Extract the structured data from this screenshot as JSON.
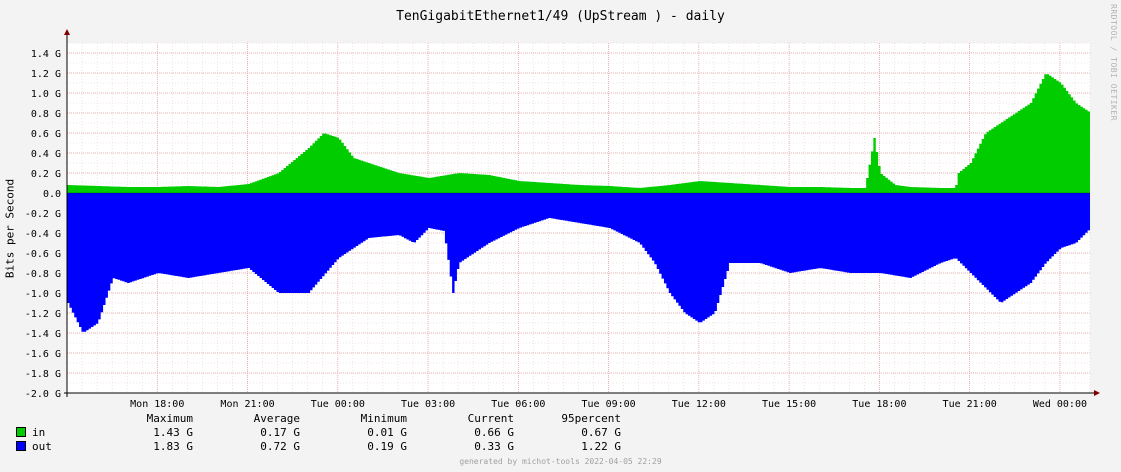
{
  "title": "TenGigabitEthernet1/49 (UpStream ) - daily",
  "side_credit": "RRDTOOL / TOBI OETIKER",
  "footer": "generated by michot-tools 2022-04-05 22:29",
  "chart_data": {
    "type": "area",
    "ylabel": "Bits per Second",
    "ylim": [
      -2.0,
      1.5
    ],
    "yticks": [
      "1.4 G",
      "1.2 G",
      "1.0 G",
      "0.8 G",
      "0.6 G",
      "0.4 G",
      "0.2 G",
      "0.0",
      "-0.2 G",
      "-0.4 G",
      "-0.6 G",
      "-0.8 G",
      "-1.0 G",
      "-1.2 G",
      "-1.4 G",
      "-1.6 G",
      "-1.8 G",
      "-2.0 G"
    ],
    "ytick_values": [
      1.4,
      1.2,
      1.0,
      0.8,
      0.6,
      0.4,
      0.2,
      0.0,
      -0.2,
      -0.4,
      -0.6,
      -0.8,
      -1.0,
      -1.2,
      -1.4,
      -1.6,
      -1.8,
      -2.0
    ],
    "xticks": [
      "Mon 18:00",
      "Mon 21:00",
      "Tue 00:00",
      "Tue 03:00",
      "Tue 06:00",
      "Tue 09:00",
      "Tue 12:00",
      "Tue 15:00",
      "Tue 18:00",
      "Tue 21:00",
      "Wed 00:00"
    ],
    "xtick_hours": [
      3,
      6,
      9,
      12,
      15,
      18,
      21,
      24,
      27,
      30,
      33
    ],
    "x_hours_range": [
      0.0,
      34.0
    ],
    "series": [
      {
        "name": "in",
        "color": "#00cc00",
        "points": [
          [
            0,
            0.08
          ],
          [
            1,
            0.07
          ],
          [
            2,
            0.06
          ],
          [
            3,
            0.06
          ],
          [
            4,
            0.07
          ],
          [
            5,
            0.06
          ],
          [
            6,
            0.09
          ],
          [
            7,
            0.2
          ],
          [
            8,
            0.45
          ],
          [
            8.5,
            0.6
          ],
          [
            9,
            0.55
          ],
          [
            9.5,
            0.35
          ],
          [
            10,
            0.3
          ],
          [
            11,
            0.2
          ],
          [
            12,
            0.15
          ],
          [
            13,
            0.2
          ],
          [
            14,
            0.18
          ],
          [
            15,
            0.12
          ],
          [
            16,
            0.1
          ],
          [
            17,
            0.08
          ],
          [
            18,
            0.07
          ],
          [
            19,
            0.05
          ],
          [
            20,
            0.08
          ],
          [
            21,
            0.12
          ],
          [
            22,
            0.1
          ],
          [
            23,
            0.08
          ],
          [
            24,
            0.06
          ],
          [
            25,
            0.06
          ],
          [
            26,
            0.05
          ],
          [
            26.5,
            0.05
          ],
          [
            26.8,
            0.55
          ],
          [
            27,
            0.2
          ],
          [
            27.5,
            0.08
          ],
          [
            28,
            0.06
          ],
          [
            29,
            0.05
          ],
          [
            29.5,
            0.05
          ],
          [
            29.6,
            0.2
          ],
          [
            30,
            0.3
          ],
          [
            30.5,
            0.6
          ],
          [
            31,
            0.7
          ],
          [
            32,
            0.9
          ],
          [
            32.5,
            1.2
          ],
          [
            33,
            1.1
          ],
          [
            33.5,
            0.9
          ],
          [
            34,
            0.8
          ]
        ]
      },
      {
        "name": "out",
        "color": "#0000ff",
        "points": [
          [
            0,
            -1.1
          ],
          [
            0.5,
            -1.4
          ],
          [
            1,
            -1.3
          ],
          [
            1.5,
            -0.85
          ],
          [
            2,
            -0.9
          ],
          [
            3,
            -0.8
          ],
          [
            4,
            -0.85
          ],
          [
            5,
            -0.8
          ],
          [
            6,
            -0.75
          ],
          [
            7,
            -1.0
          ],
          [
            8,
            -1.0
          ],
          [
            9,
            -0.65
          ],
          [
            10,
            -0.45
          ],
          [
            11,
            -0.42
          ],
          [
            11.5,
            -0.5
          ],
          [
            12,
            -0.35
          ],
          [
            12.5,
            -0.38
          ],
          [
            12.8,
            -1.0
          ],
          [
            13,
            -0.7
          ],
          [
            14,
            -0.5
          ],
          [
            15,
            -0.35
          ],
          [
            16,
            -0.25
          ],
          [
            17,
            -0.3
          ],
          [
            18,
            -0.35
          ],
          [
            19,
            -0.5
          ],
          [
            19.5,
            -0.7
          ],
          [
            20,
            -1.0
          ],
          [
            20.5,
            -1.2
          ],
          [
            21,
            -1.3
          ],
          [
            21.5,
            -1.2
          ],
          [
            22,
            -0.7
          ],
          [
            23,
            -0.7
          ],
          [
            24,
            -0.8
          ],
          [
            25,
            -0.75
          ],
          [
            26,
            -0.8
          ],
          [
            27,
            -0.8
          ],
          [
            28,
            -0.85
          ],
          [
            29,
            -0.7
          ],
          [
            29.5,
            -0.65
          ],
          [
            30,
            -0.8
          ],
          [
            30.5,
            -0.95
          ],
          [
            31,
            -1.1
          ],
          [
            31.5,
            -1.0
          ],
          [
            32,
            -0.9
          ],
          [
            32.5,
            -0.7
          ],
          [
            33,
            -0.55
          ],
          [
            33.5,
            -0.5
          ],
          [
            34,
            -0.35
          ]
        ]
      }
    ],
    "legend": [
      {
        "name": "in",
        "color": "#00cc00",
        "maximum": "1.43 G",
        "average": "0.17 G",
        "minimum": "0.01 G",
        "current": "0.66 G",
        "p95": "0.67 G"
      },
      {
        "name": "out",
        "color": "#0000ff",
        "maximum": "1.83 G",
        "average": "0.72 G",
        "minimum": "0.19 G",
        "current": "0.33 G",
        "p95": "1.22 G"
      }
    ],
    "legend_headers": {
      "maximum": "Maximum",
      "average": "Average",
      "minimum": "Minimum",
      "current": "Current",
      "p95": "95percent"
    },
    "grid": true
  }
}
